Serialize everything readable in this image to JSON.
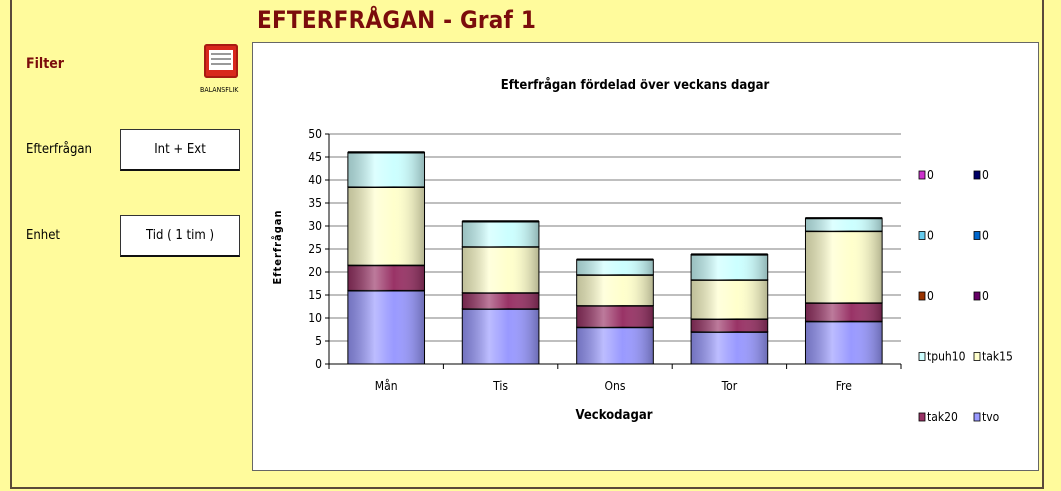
{
  "page": {
    "title": "EFTERFRÅGAN - Graf 1",
    "filter_label": "Filter",
    "efterfragan_label": "Efterfrågan",
    "efterfragan_button": "Int + Ext",
    "enhet_label": "Enhet",
    "enhet_button": "Tid ( 1 tim )",
    "balans_icon_label": "BALANSFLIK",
    "balans_icon": "balance-sheet-icon"
  },
  "chart_data": {
    "type": "bar",
    "stacked": true,
    "title": "Efterfrågan fördelad över veckans dagar",
    "xlabel": "Veckodagar",
    "ylabel": "Efterfrågan",
    "ylim": [
      0,
      50
    ],
    "yticks": [
      0,
      5,
      10,
      15,
      20,
      25,
      30,
      35,
      40,
      45,
      50
    ],
    "grid": true,
    "legend_position": "right",
    "categories": [
      "Mån",
      "Tis",
      "Ons",
      "Tor",
      "Fre"
    ],
    "series": [
      {
        "name": "tvo",
        "color": "#9999ff",
        "values": [
          16,
          12,
          8,
          7,
          9.3
        ]
      },
      {
        "name": "tak20",
        "color": "#993366",
        "values": [
          5.5,
          3.5,
          4.7,
          2.8,
          4
        ]
      },
      {
        "name": "tak15",
        "color": "#ffffcc",
        "values": [
          17,
          10,
          6.7,
          8.5,
          15.6
        ]
      },
      {
        "name": "tpuh10",
        "color": "#ccffff",
        "values": [
          7.5,
          5.5,
          3.3,
          5.5,
          2.8
        ]
      }
    ],
    "legend": [
      {
        "name": "0",
        "color": "#cc33cc"
      },
      {
        "name": "0",
        "color": "#000066"
      },
      {
        "name": "0",
        "color": "#66ccee"
      },
      {
        "name": "0",
        "color": "#0066cc"
      },
      {
        "name": "0",
        "color": "#993300"
      },
      {
        "name": "0",
        "color": "#660066"
      },
      {
        "name": "tpuh10",
        "color": "#ccffff"
      },
      {
        "name": "tak15",
        "color": "#ffffcc"
      },
      {
        "name": "tak20",
        "color": "#993366"
      },
      {
        "name": "tvo",
        "color": "#9999ff"
      }
    ]
  }
}
